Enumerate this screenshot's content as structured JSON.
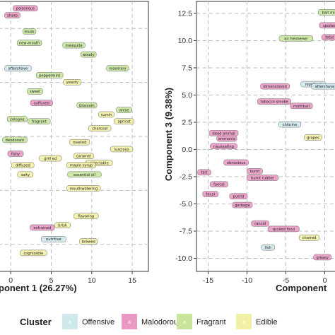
{
  "colors": {
    "Offensive": "#cfe8ec",
    "Malodorous": "#e99ac4",
    "Fragrant": "#c9e59d",
    "Edible": "#f2f0a6",
    "panel_border": "#333333",
    "grid": "#bdbdbd"
  },
  "legend": {
    "title": "Cluster",
    "items": [
      {
        "key": "Offensive",
        "label": "Offensive",
        "glyph": "a"
      },
      {
        "key": "Malodorous",
        "label": "Malodorous",
        "glyph": "a"
      },
      {
        "key": "Fragrant",
        "label": "Fragrant",
        "glyph": "a"
      },
      {
        "key": "Edible",
        "label": "Edible",
        "glyph": "a"
      }
    ]
  },
  "chart_data": [
    {
      "type": "scatter",
      "xlabel": "ponent 1 (26.27%)",
      "ylabel": "",
      "xlim": [
        -1.5,
        17
      ],
      "ylim": [
        -5.2,
        6.5
      ],
      "xticks": [
        0,
        5,
        10,
        15
      ],
      "yticks": [],
      "grid": true,
      "points": [
        {
          "label": "poisonous",
          "x": 1.8,
          "y": 6.2,
          "cluster": "Malodorous"
        },
        {
          "label": "sharp",
          "x": 0.2,
          "y": 5.9,
          "cluster": "Malodorous"
        },
        {
          "label": "musk",
          "x": 2.3,
          "y": 5.2,
          "cluster": "Fragrant"
        },
        {
          "label": "new-mouth",
          "x": 2.3,
          "y": 4.7,
          "cluster": "Fragrant"
        },
        {
          "label": "mesquite",
          "x": 7.8,
          "y": 4.6,
          "cluster": "Fragrant"
        },
        {
          "label": "woody",
          "x": 9.6,
          "y": 4.2,
          "cluster": "Fragrant"
        },
        {
          "label": "yeasty",
          "x": 7.6,
          "y": 3.0,
          "cluster": "Edible"
        },
        {
          "label": "rosemary",
          "x": 13.2,
          "y": 3.6,
          "cluster": "Fragrant"
        },
        {
          "label": "aftershave",
          "x": 0.9,
          "y": 3.6,
          "cluster": "Offensive"
        },
        {
          "label": "peppermint",
          "x": 4.8,
          "y": 3.3,
          "cluster": "Fragrant"
        },
        {
          "label": "sweet",
          "x": 3.0,
          "y": 2.6,
          "cluster": "Fragrant"
        },
        {
          "label": "suffused",
          "x": 3.8,
          "y": 2.1,
          "cluster": "Malodorous"
        },
        {
          "label": "blossom",
          "x": 9.4,
          "y": 2.0,
          "cluster": "Fragrant"
        },
        {
          "label": "anise",
          "x": 14.0,
          "y": 1.8,
          "cluster": "Fragrant"
        },
        {
          "label": "apricot",
          "x": 14.0,
          "y": 1.3,
          "cluster": "Edible"
        },
        {
          "label": "cumin",
          "x": 11.8,
          "y": 1.6,
          "cluster": "Edible"
        },
        {
          "label": "cologne",
          "x": 0.8,
          "y": 1.4,
          "cluster": "Fragrant"
        },
        {
          "label": "fragrant",
          "x": 3.5,
          "y": 1.3,
          "cluster": "Fragrant"
        },
        {
          "label": "charcoal",
          "x": 11.0,
          "y": 1.0,
          "cluster": "Edible"
        },
        {
          "label": "deodorant",
          "x": 0.5,
          "y": 0.5,
          "cluster": "Fragrant"
        },
        {
          "label": "roasted",
          "x": 8.5,
          "y": 0.4,
          "cluster": "Edible"
        },
        {
          "label": "luscious",
          "x": 13.7,
          "y": 0.1,
          "cluster": "Edible"
        },
        {
          "label": "fishy",
          "x": 0.6,
          "y": -0.1,
          "cluster": "Malodorous"
        },
        {
          "label": "caramel",
          "x": 9.0,
          "y": -0.2,
          "cluster": "Edible"
        },
        {
          "label": "delectable",
          "x": 10.9,
          "y": -0.5,
          "cluster": "Edible"
        },
        {
          "label": "diffused",
          "x": 1.5,
          "y": -0.6,
          "cluster": "Edible"
        },
        {
          "label": "grill ed",
          "x": 4.9,
          "y": -0.3,
          "cluster": "Edible"
        },
        {
          "label": "maple syrup",
          "x": 8.7,
          "y": -0.6,
          "cluster": "Edible"
        },
        {
          "label": "salty",
          "x": 1.8,
          "y": -1.0,
          "cluster": "Edible"
        },
        {
          "label": "essential oil",
          "x": 9.1,
          "y": -1.0,
          "cluster": "Fragrant"
        },
        {
          "label": "mouthwatering",
          "x": 9.0,
          "y": -1.6,
          "cluster": "Edible"
        },
        {
          "label": "flavoring",
          "x": 9.3,
          "y": -2.8,
          "cluster": "Edible"
        },
        {
          "label": "brisk",
          "x": 6.4,
          "y": -3.2,
          "cluster": "Edible"
        },
        {
          "label": "entrained",
          "x": 3.9,
          "y": -3.3,
          "cluster": "Malodorous"
        },
        {
          "label": "nutritive",
          "x": 5.3,
          "y": -3.8,
          "cluster": "Offensive"
        },
        {
          "label": "brewed",
          "x": 9.6,
          "y": -3.9,
          "cluster": "Edible"
        },
        {
          "label": "cognizable",
          "x": 2.8,
          "y": -4.4,
          "cluster": "Edible"
        }
      ]
    },
    {
      "type": "scatter",
      "xlabel": "Component",
      "ylabel": "Component 3 (9.38%)",
      "xlim": [
        -16.5,
        1.5
      ],
      "ylim": [
        -11.2,
        13.6
      ],
      "xticks": [
        -15,
        -10,
        -5,
        0
      ],
      "yticks": [
        12.5,
        10.0,
        7.5,
        5.0,
        2.5,
        0.0,
        -2.5,
        -5.0,
        -7.5,
        -10.0
      ],
      "grid": true,
      "points": [
        {
          "label": "bait mix",
          "x": 0.6,
          "y": 12.6,
          "cluster": "Fragrant"
        },
        {
          "label": "spoiled",
          "x": 0.6,
          "y": 11.4,
          "cluster": "Malodorous"
        },
        {
          "label": "fetid",
          "x": 0.6,
          "y": 10.3,
          "cluster": "Malodorous"
        },
        {
          "label": "air freshener",
          "x": -3.7,
          "y": 10.2,
          "cluster": "Fragrant"
        },
        {
          "label": "repellent",
          "x": -1.5,
          "y": 6.0,
          "cluster": "Offensive"
        },
        {
          "label": "aftershave",
          "x": 0.0,
          "y": 5.8,
          "cluster": "Offensive"
        },
        {
          "label": "dimensioned",
          "x": -6.4,
          "y": 5.8,
          "cluster": "Malodorous"
        },
        {
          "label": "tobacco smoke",
          "x": -6.5,
          "y": 4.4,
          "cluster": "Malodorous"
        },
        {
          "label": "mothball",
          "x": -3.0,
          "y": 4.0,
          "cluster": "Malodorous"
        },
        {
          "label": "chlorine",
          "x": -4.5,
          "y": 2.3,
          "cluster": "Offensive"
        },
        {
          "label": "grapes",
          "x": -1.5,
          "y": 1.1,
          "cluster": "Edible"
        },
        {
          "label": "dead animal",
          "x": -13.0,
          "y": 1.5,
          "cluster": "Malodorous"
        },
        {
          "label": "ammonia",
          "x": -12.6,
          "y": 1.0,
          "cluster": "Malodorous"
        },
        {
          "label": "nauseating",
          "x": -13.0,
          "y": 0.3,
          "cluster": "Malodorous"
        },
        {
          "label": "obnoxious",
          "x": -11.4,
          "y": -1.2,
          "cluster": "Malodorous"
        },
        {
          "label": "fart",
          "x": -15.5,
          "y": -2.1,
          "cluster": "Malodorous"
        },
        {
          "label": "burnt",
          "x": -9.0,
          "y": -2.0,
          "cluster": "Malodorous"
        },
        {
          "label": "burnt rubber",
          "x": -8.0,
          "y": -2.6,
          "cluster": "Malodorous"
        },
        {
          "label": "faecal",
          "x": -13.6,
          "y": -3.2,
          "cluster": "Malodorous"
        },
        {
          "label": "fecal",
          "x": -14.7,
          "y": -4.1,
          "cluster": "Malodorous"
        },
        {
          "label": "putrid",
          "x": -11.1,
          "y": -4.3,
          "cluster": "Malodorous"
        },
        {
          "label": "garbage",
          "x": -10.6,
          "y": -5.1,
          "cluster": "Malodorous"
        },
        {
          "label": "rancid",
          "x": -8.3,
          "y": -6.8,
          "cluster": "Malodorous"
        },
        {
          "label": "spoiled food",
          "x": -5.3,
          "y": -7.3,
          "cluster": "Malodorous"
        },
        {
          "label": "charred",
          "x": -2.0,
          "y": -8.1,
          "cluster": "Edible"
        },
        {
          "label": "fish",
          "x": -7.3,
          "y": -9.0,
          "cluster": "Offensive"
        },
        {
          "label": "greasy",
          "x": -0.3,
          "y": -9.9,
          "cluster": "Malodorous"
        }
      ]
    }
  ]
}
